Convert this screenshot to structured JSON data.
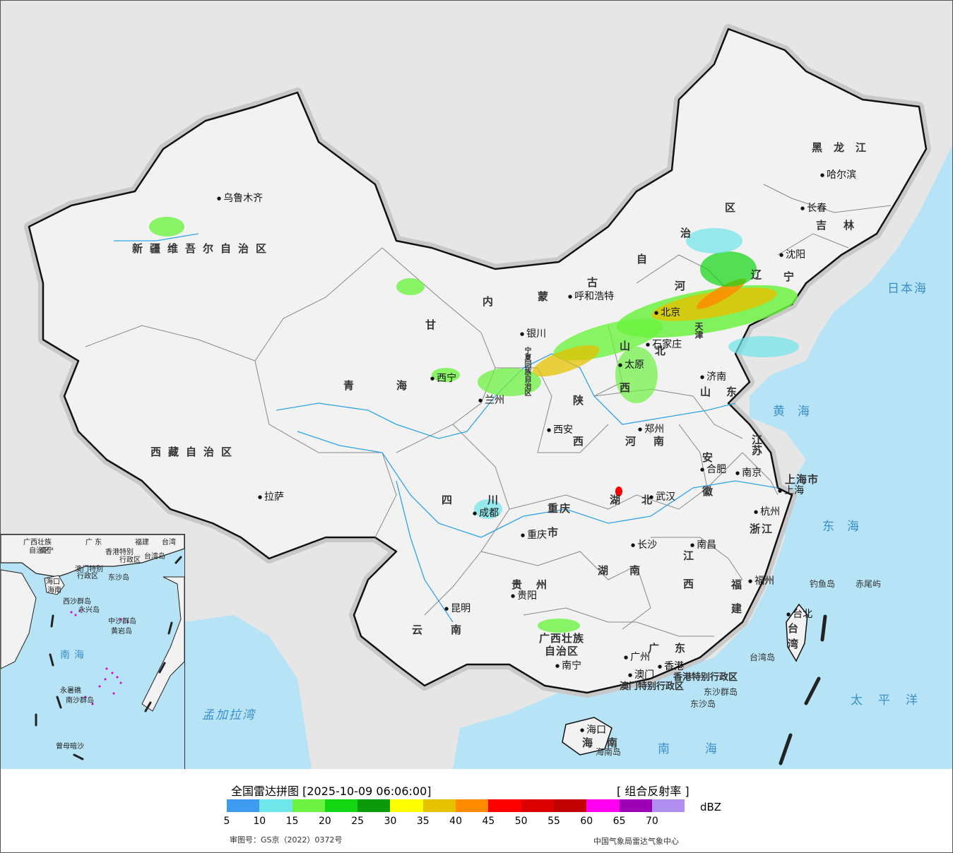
{
  "provinces": [
    {
      "id": "xinjiang",
      "text": "新疆维吾尔自治区"
    },
    {
      "id": "xizang",
      "text": "西藏自治区"
    },
    {
      "id": "qinghai",
      "text": "青海"
    },
    {
      "id": "gansu",
      "text": "甘"
    },
    {
      "id": "sichuan",
      "text": "四川"
    },
    {
      "id": "yunnan",
      "text": "云南"
    },
    {
      "id": "guizhou",
      "text": "贵州"
    },
    {
      "id": "chongqing1",
      "text": "重庆"
    },
    {
      "id": "chongqing2",
      "text": "市"
    },
    {
      "id": "guangxi1",
      "text": "广西壮族"
    },
    {
      "id": "guangxi2",
      "text": "自治区"
    },
    {
      "id": "guangdong",
      "text": "广东"
    },
    {
      "id": "hunan",
      "text": "湖南"
    },
    {
      "id": "hubei",
      "text": "湖北"
    },
    {
      "id": "henan",
      "text": "河南"
    },
    {
      "id": "shaanxi",
      "text": "西"
    },
    {
      "id": "shanxi",
      "text": "西"
    },
    {
      "id": "shandong",
      "text": "山东"
    },
    {
      "id": "jiangsu",
      "text": "江苏"
    },
    {
      "id": "anhui1",
      "text": "安"
    },
    {
      "id": "anhui2",
      "text": "徽"
    },
    {
      "id": "zhejiang",
      "text": "浙江"
    },
    {
      "id": "jiangxi1",
      "text": "江"
    },
    {
      "id": "jiangxi2",
      "text": "西"
    },
    {
      "id": "fujian1",
      "text": "福"
    },
    {
      "id": "fujian2",
      "text": "建"
    },
    {
      "id": "taiwan1",
      "text": "台"
    },
    {
      "id": "taiwan2",
      "text": "湾"
    },
    {
      "id": "shanghai",
      "text": "上海市"
    },
    {
      "id": "nmg1",
      "text": "内"
    },
    {
      "id": "nmg2",
      "text": "蒙"
    },
    {
      "id": "nmg3",
      "text": "古"
    },
    {
      "id": "nmg4",
      "text": "自"
    },
    {
      "id": "nmg5",
      "text": "治"
    },
    {
      "id": "nmg6",
      "text": "区"
    },
    {
      "id": "heilongjiang",
      "text": "黑龙江"
    },
    {
      "id": "jilin",
      "text": "吉林"
    },
    {
      "id": "liaoning1",
      "text": "辽"
    },
    {
      "id": "liaoning2",
      "text": "宁"
    },
    {
      "id": "hebei1",
      "text": "河"
    },
    {
      "id": "hebei2",
      "text": "北"
    },
    {
      "id": "ningxia",
      "text": "宁夏回族自治区"
    },
    {
      "id": "shaanxi2",
      "text": "陕"
    },
    {
      "id": "shanxi2",
      "text": "山"
    },
    {
      "id": "hainan",
      "text": "海南"
    },
    {
      "id": "hk",
      "text": "香港特别行政区"
    },
    {
      "id": "macao",
      "text": "澳门特别行政区"
    },
    {
      "id": "tianjin",
      "text": "天津"
    }
  ],
  "cities": [
    {
      "id": "urumqi",
      "text": "乌鲁木齐"
    },
    {
      "id": "lhasa",
      "text": "拉萨"
    },
    {
      "id": "xining",
      "text": "西宁"
    },
    {
      "id": "lanzhou",
      "text": "兰州"
    },
    {
      "id": "yinchuan",
      "text": "银川"
    },
    {
      "id": "hohhot",
      "text": "呼和浩特"
    },
    {
      "id": "beijing",
      "text": "北京"
    },
    {
      "id": "shijiazhuang",
      "text": "石家庄"
    },
    {
      "id": "taiyuan",
      "text": "太原"
    },
    {
      "id": "jinan",
      "text": "济南"
    },
    {
      "id": "zhengzhou",
      "text": "郑州"
    },
    {
      "id": "xian",
      "text": "西安"
    },
    {
      "id": "chengdu",
      "text": "成都"
    },
    {
      "id": "chongqing",
      "text": "重庆"
    },
    {
      "id": "wuhan",
      "text": "武汉"
    },
    {
      "id": "hefei",
      "text": "合肥"
    },
    {
      "id": "nanjing",
      "text": "南京"
    },
    {
      "id": "shanghai",
      "text": "上海"
    },
    {
      "id": "hangzhou",
      "text": "杭州"
    },
    {
      "id": "nanchang",
      "text": "南昌"
    },
    {
      "id": "changsha",
      "text": "长沙"
    },
    {
      "id": "guiyang",
      "text": "贵阳"
    },
    {
      "id": "kunming",
      "text": "昆明"
    },
    {
      "id": "nanning",
      "text": "南宁"
    },
    {
      "id": "guangzhou",
      "text": "广州"
    },
    {
      "id": "hongkong",
      "text": "香港"
    },
    {
      "id": "macau",
      "text": "澳门"
    },
    {
      "id": "haikou",
      "text": "海口"
    },
    {
      "id": "fuzhou",
      "text": "福州"
    },
    {
      "id": "taipei",
      "text": "台北"
    },
    {
      "id": "shenyang",
      "text": "沈阳"
    },
    {
      "id": "changchun",
      "text": "长春"
    },
    {
      "id": "harbin",
      "text": "哈尔滨"
    }
  ],
  "seas": [
    {
      "id": "sea-japan",
      "text": "日本海"
    },
    {
      "id": "sea-yellow",
      "text": "黄海"
    },
    {
      "id": "sea-east",
      "text": "东海"
    },
    {
      "id": "sea-pacific",
      "text": "太平洋"
    },
    {
      "id": "sea-south",
      "text": "南海"
    },
    {
      "id": "sea-bengal",
      "text": "孟加拉湾"
    }
  ],
  "islands": [
    {
      "id": "diaoyu",
      "text": "钓鱼岛"
    },
    {
      "id": "chiwei",
      "text": "赤尾屿"
    },
    {
      "id": "taiwan-island",
      "text": "台湾岛"
    },
    {
      "id": "dongsha-islands",
      "text": "东沙群岛"
    },
    {
      "id": "dongsha-island",
      "text": "东沙岛"
    },
    {
      "id": "hainan-island",
      "text": "海南岛"
    }
  ],
  "inset": {
    "labels": [
      {
        "id": "in-guangxi",
        "text": "广西壮族"
      },
      {
        "id": "in-guangxi2",
        "text": "自治区"
      },
      {
        "id": "in-guangdong",
        "text": "广 东"
      },
      {
        "id": "in-fujian",
        "text": "福建"
      },
      {
        "id": "in-taiwan",
        "text": "台湾"
      },
      {
        "id": "in-nanning",
        "text": "南宁"
      },
      {
        "id": "in-hk",
        "text": "香港特别"
      },
      {
        "id": "in-hk2",
        "text": "行政区"
      },
      {
        "id": "in-macao",
        "text": "澳门特别"
      },
      {
        "id": "in-macao2",
        "text": "行政区"
      },
      {
        "id": "in-taiwandao",
        "text": "台湾岛"
      },
      {
        "id": "in-dongsha",
        "text": "东沙岛"
      },
      {
        "id": "in-haikou",
        "text": "海口"
      },
      {
        "id": "in-hainan",
        "text": "海南"
      },
      {
        "id": "in-xisha",
        "text": "西沙群岛"
      },
      {
        "id": "in-yongxing",
        "text": "永兴岛"
      },
      {
        "id": "in-zhongsha",
        "text": "中沙群岛"
      },
      {
        "id": "in-huangyan",
        "text": "黄岩岛"
      },
      {
        "id": "in-nansha",
        "text": "南沙群岛"
      },
      {
        "id": "in-yongshu",
        "text": "永暑礁"
      },
      {
        "id": "in-zengmu",
        "text": "曾母暗沙"
      }
    ],
    "sea": "南海"
  },
  "legend": {
    "title": "全国雷达拼图 [2025-10-09 06:06:00]",
    "type": "[ 组合反射率 ]",
    "unit": "dBZ",
    "ticks": [
      "5",
      "10",
      "15",
      "20",
      "25",
      "30",
      "35",
      "40",
      "45",
      "50",
      "55",
      "60",
      "65",
      "70"
    ],
    "colors": [
      "#3f9bf0",
      "#6ee6ea",
      "#6df241",
      "#11d611",
      "#0a9a0a",
      "#ffff00",
      "#e6c100",
      "#ff8c00",
      "#ff0000",
      "#dc0000",
      "#c10000",
      "#ff00f0",
      "#9c00b4",
      "#b08ef0"
    ],
    "approval": "审图号：GS京（2022）0372号",
    "issuer": "中国气象局雷达气象中心"
  },
  "colors": {
    "land": "#f2f2f2",
    "ocean": "#b6e4f6",
    "outside": "#e6e6e6",
    "river": "#2fa4e7"
  }
}
